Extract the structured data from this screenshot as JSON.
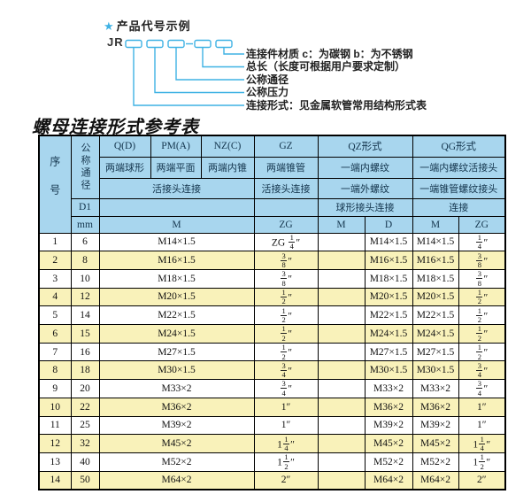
{
  "colors": {
    "accent": "#3fb2e4",
    "header_bg": "#a8d6ee",
    "zebra": "#f9f2ba",
    "border": "#000000"
  },
  "diagram": {
    "star": "★",
    "title": "产品代号示例",
    "prefix": "JR",
    "labels": [
      "连接件材质 c：为碳钢 b：为不锈钢",
      "总长（长度可根据用户要求定制）",
      "公称通径",
      "公称压力",
      "连接形式：见金属软管常用结构形式表"
    ]
  },
  "table_title": "螺母连接形式参考表",
  "table": {
    "header": {
      "seq": "序号",
      "dn": "公称通径",
      "d1": "D1",
      "mm": "mm",
      "col_q": "Q(D)",
      "col_pm": "PM(A)",
      "col_nz": "NZ(C)",
      "col_gz": "GZ",
      "col_qz": "QZ形式",
      "col_qg": "QG形式",
      "q_desc": "两端球形",
      "pm_desc": "两端平面",
      "nz_desc": "两端内锥",
      "gz_desc": "两端锥管",
      "qz_desc1": "一端内螺纹",
      "qg_desc1": "一端内螺纹活接头",
      "union_conn": "活接头连接",
      "gz_conn": "活接头连接",
      "qz_desc2": "一端外螺纹",
      "qg_desc2": "一端锥管螺纹接头",
      "qz_conn": "球形接头连接",
      "qg_conn": "连接",
      "m_label": "M",
      "zg_label": "ZG",
      "qz_m_label": "M",
      "qz_d_label": "D",
      "qg_m_label": "M",
      "qg_zg_label": "ZG"
    },
    "columns": [
      "seq",
      "mm",
      "m",
      "gz",
      "qz_m",
      "qz_d",
      "qg_m",
      "qg_zg"
    ],
    "rows": [
      [
        "1",
        "6",
        "M14×1.5",
        "ZG {1/4}″",
        "",
        "M14×1.5",
        "M14×1.5",
        "{1/4}″"
      ],
      [
        "2",
        "8",
        "M16×1.5",
        "{3/8}″",
        "",
        "M16×1.5",
        "M16×1.5",
        "{3/8}″"
      ],
      [
        "3",
        "10",
        "M18×1.5",
        "{3/8}″",
        "",
        "M18×1.5",
        "M18×1.5",
        "{3/8}″"
      ],
      [
        "4",
        "12",
        "M20×1.5",
        "{1/2}″",
        "",
        "M20×1.5",
        "M20×1.5",
        "{1/2}″"
      ],
      [
        "5",
        "14",
        "M22×1.5",
        "{1/2}″",
        "",
        "M22×1.5",
        "M22×1.5",
        "{1/2}″"
      ],
      [
        "6",
        "15",
        "M24×1.5",
        "{1/2}″",
        "",
        "M24×1.5",
        "M24×1.5",
        "{1/2}″"
      ],
      [
        "7",
        "16",
        "M27×1.5",
        "{1/2}″",
        "",
        "M27×1.5",
        "M27×1.5",
        "{1/2}″"
      ],
      [
        "8",
        "18",
        "M30×1.5",
        "{3/4}″",
        "",
        "M30×1.5",
        "M30×1.5",
        "{3/4}″"
      ],
      [
        "9",
        "20",
        "M33×2",
        "{3/4}″",
        "",
        "M33×2",
        "M33×2",
        "{3/4}″"
      ],
      [
        "10",
        "22",
        "M36×2",
        "1″",
        "",
        "M36×2",
        "M36×2",
        "1″"
      ],
      [
        "11",
        "25",
        "M39×2",
        "1″",
        "",
        "M39×2",
        "M39×2",
        "1″"
      ],
      [
        "12",
        "32",
        "M45×2",
        "1{1/4}″",
        "",
        "M45×2",
        "M45×2",
        "1{1/4}″"
      ],
      [
        "13",
        "40",
        "M52×2",
        "1{1/2}″",
        "",
        "M52×2",
        "M52×2",
        "1{1/2}″"
      ],
      [
        "14",
        "50",
        "M64×2",
        "2″",
        "",
        "M64×2",
        "M64×2",
        "2″"
      ]
    ]
  }
}
